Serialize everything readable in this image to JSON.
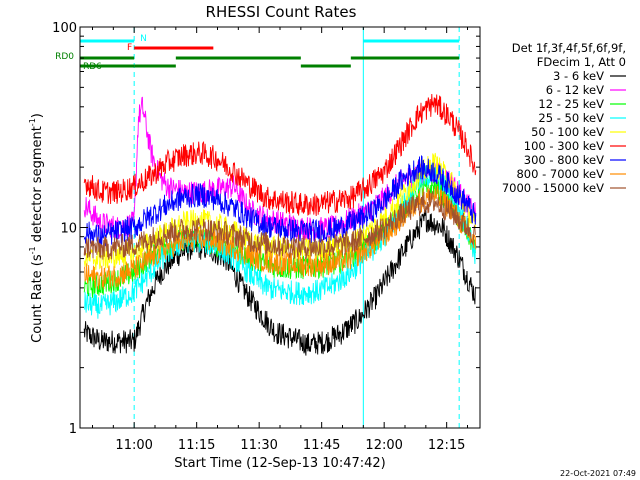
{
  "chart_data": {
    "type": "line",
    "title": "RHESSI Count Rates",
    "xlabel": "Start Time (12-Sep-13 10:47:42)",
    "ylabel_main": "Count Rate (s",
    "ylabel_exp1": "-1",
    "ylabel_mid": " detector segment",
    "ylabel_exp2": "-1",
    "ylabel_end": ")",
    "y_scale": "log",
    "xlim_minutes": [
      -13,
      83
    ],
    "ylim": [
      1,
      100
    ],
    "grid": false,
    "legend_position": "right",
    "x_ticks": [
      {
        "minute": 0,
        "label": "11:00"
      },
      {
        "minute": 15,
        "label": "11:15"
      },
      {
        "minute": 30,
        "label": "11:30"
      },
      {
        "minute": 45,
        "label": "11:45"
      },
      {
        "minute": 60,
        "label": "12:00"
      },
      {
        "minute": 75,
        "label": "12:15"
      }
    ],
    "y_ticks": [
      {
        "value": 1,
        "label": "1"
      },
      {
        "value": 10,
        "label": "10"
      },
      {
        "value": 100,
        "label": "100"
      }
    ],
    "legend_header": [
      "Det 1f,3f,4f,5f,6f,9f,",
      "FDecim 1, Att 0"
    ],
    "series": [
      {
        "name": "3 - 6 keV",
        "color": "#000000",
        "x": [
          -12,
          -8,
          -4,
          0,
          3,
          6,
          10,
          14,
          18,
          22,
          26,
          30,
          34,
          38,
          42,
          46,
          50,
          54,
          58,
          62,
          66,
          70,
          74,
          78,
          82
        ],
        "y": [
          3.0,
          2.7,
          2.7,
          2.7,
          4.2,
          5.8,
          7.2,
          8.0,
          7.8,
          7.0,
          5.0,
          3.8,
          3.0,
          2.8,
          2.6,
          2.7,
          3.0,
          3.5,
          4.5,
          6.2,
          8.5,
          11.0,
          10.0,
          7.0,
          4.5
        ]
      },
      {
        "name": "6 - 12 keV",
        "color": "#ff00ff",
        "x": [
          -12,
          -8,
          -4,
          0,
          1,
          2,
          4,
          6,
          8,
          12,
          16,
          20,
          24,
          28,
          32,
          36,
          40,
          44,
          48,
          52,
          56,
          60,
          64,
          68,
          72,
          76,
          80,
          82
        ],
        "y": [
          13.0,
          10.5,
          10.0,
          10.5,
          35,
          40,
          24,
          18,
          16,
          15.0,
          15.0,
          15.5,
          16.0,
          12.0,
          11.0,
          10.5,
          10.0,
          9.8,
          10.0,
          11.0,
          12.0,
          14.0,
          17.0,
          19.0,
          19.0,
          17.0,
          13.0,
          11.5
        ]
      },
      {
        "name": "12 - 25 keV",
        "color": "#00ff00",
        "x": [
          -12,
          -8,
          -4,
          0,
          4,
          8,
          12,
          16,
          20,
          24,
          28,
          32,
          36,
          40,
          44,
          48,
          52,
          56,
          60,
          64,
          68,
          72,
          76,
          80,
          82
        ],
        "y": [
          5.0,
          5.2,
          5.5,
          6.0,
          7.2,
          8.2,
          8.8,
          8.8,
          8.2,
          7.8,
          7.0,
          6.5,
          6.3,
          6.3,
          6.4,
          6.6,
          7.2,
          8.0,
          9.5,
          12.0,
          15.0,
          16.0,
          13.0,
          9.5,
          7.5
        ]
      },
      {
        "name": "25 - 50 keV",
        "color": "#00ffff",
        "x": [
          -12,
          -8,
          -4,
          0,
          4,
          8,
          12,
          16,
          20,
          24,
          28,
          32,
          36,
          40,
          44,
          48,
          52,
          56,
          60,
          64,
          68,
          72,
          76,
          80,
          82
        ],
        "y": [
          4.2,
          4.0,
          4.3,
          4.8,
          6.0,
          7.5,
          8.5,
          8.6,
          8.0,
          7.0,
          5.8,
          5.0,
          4.8,
          4.7,
          4.8,
          5.2,
          6.0,
          7.3,
          9.0,
          12.5,
          17.0,
          19.0,
          15.0,
          10.0,
          7.2
        ]
      },
      {
        "name": "50 - 100 keV",
        "color": "#ffff00",
        "x": [
          -12,
          -8,
          -4,
          0,
          4,
          8,
          12,
          16,
          20,
          24,
          28,
          32,
          36,
          40,
          44,
          48,
          52,
          56,
          60,
          64,
          68,
          72,
          76,
          80,
          82
        ],
        "y": [
          7.0,
          7.0,
          7.2,
          7.5,
          8.5,
          9.5,
          10.5,
          10.8,
          10.3,
          9.5,
          8.5,
          8.0,
          7.8,
          7.7,
          7.8,
          8.0,
          8.5,
          9.5,
          11.0,
          14.0,
          18.0,
          21.0,
          17.0,
          12.0,
          10.0
        ]
      },
      {
        "name": "100 - 300 keV",
        "color": "#ff0000",
        "x": [
          -12,
          -8,
          -4,
          0,
          4,
          8,
          12,
          16,
          20,
          24,
          28,
          32,
          36,
          40,
          44,
          48,
          52,
          56,
          60,
          64,
          68,
          72,
          76,
          80,
          82
        ],
        "y": [
          17.0,
          15.0,
          15.0,
          16.0,
          18.0,
          21.0,
          23.0,
          23.5,
          22.0,
          19.0,
          16.0,
          14.0,
          13.5,
          13.0,
          13.0,
          13.5,
          14.0,
          16.0,
          19.0,
          26.0,
          36.0,
          42.0,
          35.0,
          25.0,
          19.0
        ]
      },
      {
        "name": "300 - 800 keV",
        "color": "#0000ff",
        "x": [
          -12,
          -8,
          -4,
          0,
          4,
          8,
          12,
          16,
          20,
          24,
          28,
          32,
          36,
          40,
          44,
          48,
          52,
          56,
          60,
          64,
          68,
          72,
          76,
          80,
          82
        ],
        "y": [
          9.5,
          9.0,
          9.5,
          10.0,
          11.5,
          13.0,
          14.2,
          14.5,
          13.8,
          12.5,
          11.0,
          10.2,
          9.8,
          9.6,
          9.6,
          9.8,
          10.5,
          11.5,
          13.5,
          17.0,
          20.0,
          19.0,
          16.0,
          13.0,
          11.0
        ]
      },
      {
        "name": "800 - 7000 keV",
        "color": "#ff8c00",
        "x": [
          -12,
          -8,
          -4,
          0,
          4,
          8,
          12,
          16,
          20,
          24,
          28,
          32,
          36,
          40,
          44,
          48,
          52,
          56,
          60,
          64,
          68,
          72,
          76,
          80,
          82
        ],
        "y": [
          5.8,
          5.6,
          5.8,
          6.2,
          7.0,
          8.0,
          8.6,
          8.8,
          8.5,
          8.0,
          7.2,
          6.8,
          6.6,
          6.5,
          6.5,
          6.7,
          7.0,
          7.8,
          9.0,
          11.0,
          13.5,
          14.5,
          12.5,
          9.5,
          8.0
        ]
      },
      {
        "name": "7000 - 15000 keV",
        "color": "#a0522d",
        "x": [
          -12,
          -8,
          -4,
          0,
          4,
          8,
          12,
          16,
          20,
          24,
          28,
          32,
          36,
          40,
          44,
          48,
          52,
          56,
          60,
          64,
          68,
          72,
          76,
          80,
          82
        ],
        "y": [
          8.0,
          7.8,
          8.0,
          8.2,
          8.8,
          9.4,
          9.8,
          9.9,
          9.6,
          9.2,
          8.6,
          8.3,
          8.1,
          8.0,
          8.0,
          8.1,
          8.4,
          9.0,
          10.0,
          11.5,
          13.0,
          13.5,
          12.0,
          10.0,
          9.0
        ]
      }
    ],
    "night_intervals": [
      [
        -13,
        0
      ],
      [
        55,
        78
      ]
    ],
    "flags": [
      {
        "label": "N",
        "color": "#00ffff",
        "row": 1,
        "intervals": [
          [
            -13,
            0
          ],
          [
            55,
            78
          ]
        ]
      },
      {
        "label": "F",
        "color": "#ff0000",
        "row": 2,
        "intervals": [
          [
            0,
            19
          ]
        ]
      },
      {
        "label": "RD0",
        "color": "#008000",
        "row": 3,
        "intervals": [
          [
            -13,
            0
          ],
          [
            10,
            40
          ],
          [
            52,
            78
          ]
        ]
      },
      {
        "label": "RD6",
        "color": "#008000",
        "row": 4,
        "intervals": [
          [
            -13,
            0
          ],
          [
            0,
            10
          ],
          [
            40,
            52
          ]
        ]
      }
    ]
  },
  "timestamp": "22-Oct-2021 07:49"
}
